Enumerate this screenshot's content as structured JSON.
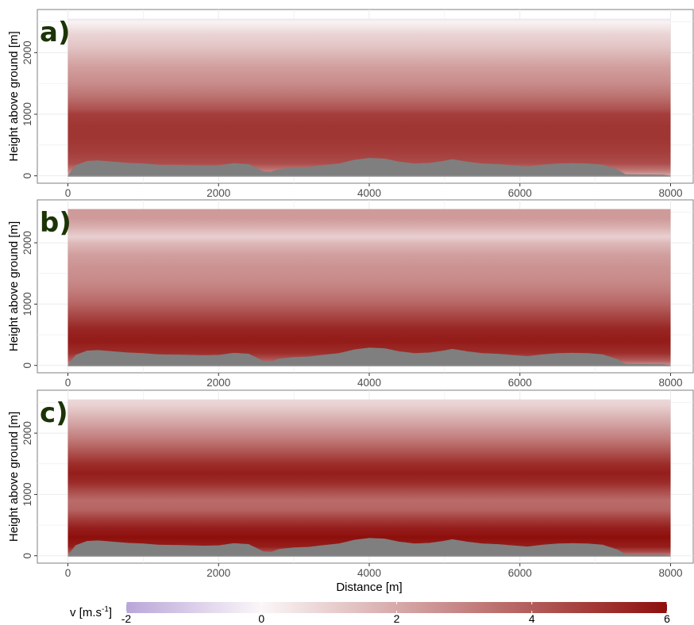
{
  "chart_data": [
    {
      "type": "heatmap",
      "panel_label": "a)",
      "xlabel": "",
      "ylabel": "Height above ground [m]",
      "xlim": [
        0,
        8000
      ],
      "ylim": [
        -120,
        2700
      ],
      "x_ticks": [
        0,
        2000,
        4000,
        6000,
        8000
      ],
      "y_ticks": [
        0,
        1000,
        2000
      ],
      "top_height": 2550,
      "grid": true,
      "wind_profile": [
        [
          0,
          2.0
        ],
        [
          80,
          3.2
        ],
        [
          200,
          4.4
        ],
        [
          400,
          4.8
        ],
        [
          600,
          5.0
        ],
        [
          800,
          5.0
        ],
        [
          1000,
          4.8
        ],
        [
          1100,
          4.2
        ],
        [
          1300,
          3.4
        ],
        [
          1500,
          2.8
        ],
        [
          1800,
          2.2
        ],
        [
          2100,
          1.3
        ],
        [
          2300,
          0.9
        ],
        [
          2400,
          0.5
        ],
        [
          2500,
          0.1
        ],
        [
          2550,
          -0.5
        ]
      ]
    },
    {
      "type": "heatmap",
      "panel_label": "b)",
      "xlabel": "",
      "ylabel": "Height above ground [m]",
      "xlim": [
        0,
        8000
      ],
      "ylim": [
        -120,
        2700
      ],
      "x_ticks": [
        0,
        2000,
        4000,
        6000,
        8000
      ],
      "y_ticks": [
        0,
        1000,
        2000
      ],
      "top_height": 2550,
      "grid": true,
      "wind_profile": [
        [
          0,
          2.6
        ],
        [
          80,
          4.0
        ],
        [
          200,
          5.2
        ],
        [
          400,
          5.7
        ],
        [
          600,
          5.4
        ],
        [
          800,
          4.6
        ],
        [
          1000,
          3.8
        ],
        [
          1200,
          3.2
        ],
        [
          1400,
          2.8
        ],
        [
          1600,
          2.6
        ],
        [
          1800,
          2.3
        ],
        [
          2000,
          1.6
        ],
        [
          2100,
          1.0
        ],
        [
          2250,
          1.8
        ],
        [
          2400,
          2.4
        ],
        [
          2550,
          2.4
        ]
      ]
    },
    {
      "type": "heatmap",
      "panel_label": "c)",
      "xlabel": "Distance [m]",
      "ylabel": "Height above ground [m]",
      "xlim": [
        0,
        8000
      ],
      "ylim": [
        -120,
        2700
      ],
      "x_ticks": [
        0,
        2000,
        4000,
        6000,
        8000
      ],
      "y_ticks": [
        0,
        1000,
        2000
      ],
      "top_height": 2550,
      "grid": true,
      "wind_profile": [
        [
          0,
          3.0
        ],
        [
          60,
          4.4
        ],
        [
          150,
          5.6
        ],
        [
          300,
          6.0
        ],
        [
          450,
          5.6
        ],
        [
          600,
          4.8
        ],
        [
          750,
          3.8
        ],
        [
          900,
          3.6
        ],
        [
          1050,
          4.4
        ],
        [
          1200,
          5.3
        ],
        [
          1350,
          5.6
        ],
        [
          1500,
          5.2
        ],
        [
          1700,
          4.2
        ],
        [
          1900,
          3.2
        ],
        [
          2100,
          2.4
        ],
        [
          2300,
          1.6
        ],
        [
          2450,
          1.0
        ],
        [
          2550,
          0.8
        ]
      ]
    }
  ],
  "terrain": {
    "color": "#7f7f7f",
    "profile": [
      [
        0,
        5
      ],
      [
        100,
        170
      ],
      [
        250,
        240
      ],
      [
        400,
        250
      ],
      [
        600,
        230
      ],
      [
        800,
        210
      ],
      [
        1000,
        200
      ],
      [
        1200,
        180
      ],
      [
        1500,
        175
      ],
      [
        1800,
        165
      ],
      [
        2000,
        170
      ],
      [
        2200,
        205
      ],
      [
        2400,
        190
      ],
      [
        2500,
        130
      ],
      [
        2600,
        70
      ],
      [
        2700,
        65
      ],
      [
        2800,
        110
      ],
      [
        3000,
        135
      ],
      [
        3200,
        145
      ],
      [
        3400,
        175
      ],
      [
        3600,
        200
      ],
      [
        3800,
        260
      ],
      [
        4000,
        290
      ],
      [
        4200,
        280
      ],
      [
        4400,
        230
      ],
      [
        4600,
        200
      ],
      [
        4800,
        210
      ],
      [
        5000,
        245
      ],
      [
        5100,
        270
      ],
      [
        5300,
        230
      ],
      [
        5500,
        200
      ],
      [
        5700,
        190
      ],
      [
        5900,
        170
      ],
      [
        6100,
        150
      ],
      [
        6300,
        180
      ],
      [
        6500,
        200
      ],
      [
        6700,
        205
      ],
      [
        6900,
        200
      ],
      [
        7100,
        180
      ],
      [
        7300,
        100
      ],
      [
        7400,
        25
      ],
      [
        7600,
        22
      ],
      [
        7900,
        20
      ],
      [
        8000,
        5
      ]
    ]
  },
  "legend": {
    "title": "v [m.s",
    "title_superscript": "-1",
    "title_suffix": "]",
    "min": -2,
    "max": 6,
    "ticks": [
      "-2",
      "0",
      "2",
      "4",
      "6"
    ],
    "colors": {
      "low": "#b9a6d9",
      "mid": "#fbf7f8",
      "high": "#8e0f0c"
    }
  },
  "panel_label_color": "#1c3406"
}
